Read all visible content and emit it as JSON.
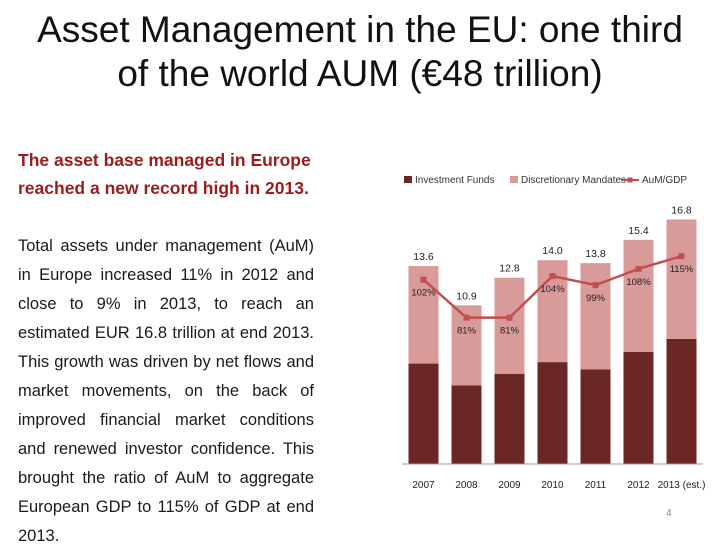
{
  "title": {
    "line1": "Asset Management in the EU: one third",
    "line2": "of the world AUM (€48 trillion)"
  },
  "subheading": "The asset base managed in Europe reached a new record high in 2013.",
  "body": "Total assets under management (AuM) in Europe increased 11% in 2012 and close to 9% in 2013, to reach an estimated EUR 16.8 trillion at end 2013. This growth was driven by net flows and market movements, on the back of improved financial market conditions and renewed investor confidence. This brought the ratio of AuM to aggregate European GDP to 115% of GDP at end 2013.",
  "page_number": "4",
  "colors": {
    "investment_funds": "#6b2626",
    "discretionary_mandates": "#d99a9a",
    "aum_gdp": "#c0504d",
    "subheading": "#9b1c1c"
  },
  "chart_data": {
    "type": "bar",
    "stacked": true,
    "categories": [
      "2007",
      "2008",
      "2009",
      "2010",
      "2011",
      "2012",
      "2013 (est.)"
    ],
    "series": [
      {
        "name": "Investment Funds",
        "values": [
          6.9,
          5.4,
          6.2,
          7.0,
          6.5,
          7.7,
          8.6
        ]
      },
      {
        "name": "Discretionary Mandates",
        "values": [
          6.7,
          5.5,
          6.6,
          7.0,
          7.3,
          7.7,
          8.2
        ]
      }
    ],
    "totals": [
      13.6,
      10.9,
      12.8,
      14.0,
      13.8,
      15.4,
      16.8
    ],
    "total_labels": [
      "13.6",
      "10.9",
      "12.8",
      "14.0",
      "13.8",
      "15.4",
      "16.8"
    ],
    "line_series": {
      "name": "AuM/GDP",
      "values": [
        102,
        81,
        81,
        104,
        99,
        108,
        115
      ],
      "labels": [
        "102%",
        "81%",
        "81%",
        "104%",
        "99%",
        "108%",
        "115%"
      ]
    },
    "legend_position": "top",
    "ylim": [
      0,
      18
    ],
    "line_ylim": [
      0,
      145
    ],
    "grid": false
  }
}
